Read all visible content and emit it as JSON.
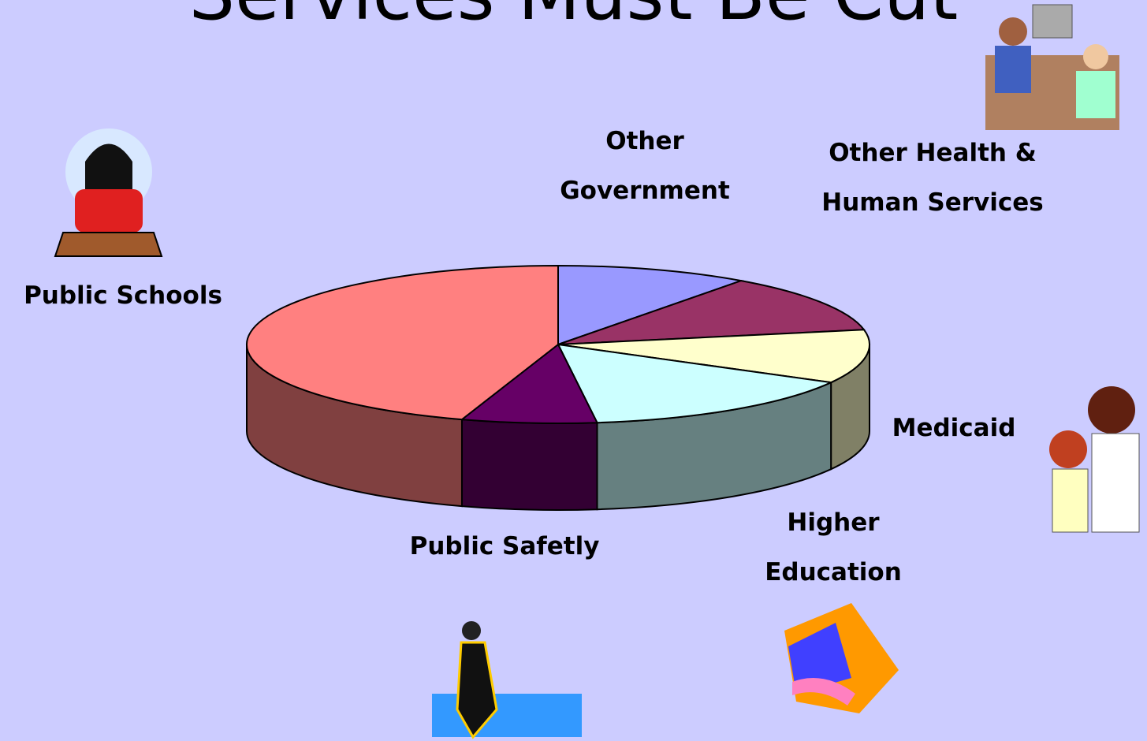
{
  "chart_data": {
    "type": "pie3d",
    "title": "Services Must Be Cut",
    "categories": [
      "Other Government",
      "Other Health & Human Services",
      "Medicaid",
      "Higher Education",
      "Public Safetly",
      "Public Schools"
    ],
    "values": [
      10,
      12,
      11,
      15,
      7,
      45
    ],
    "colors": [
      "#9999ff",
      "#993366",
      "#ffffcc",
      "#ccffff",
      "#660066",
      "#ff8080"
    ]
  }
}
